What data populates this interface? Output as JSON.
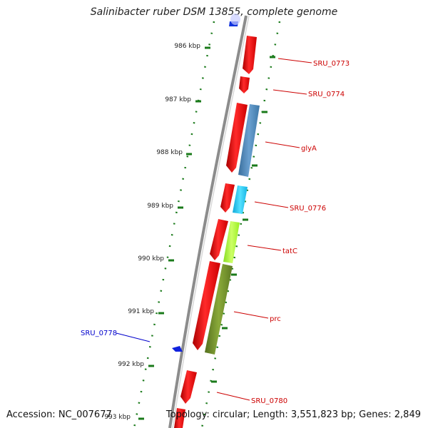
{
  "title": "Salinibacter ruber DSM 13855, complete genome",
  "accession": "Accession: NC_007677",
  "topology": "Topology: circular; Length: 3,551,823 bp; Genes: 2,849",
  "colors": {
    "red_gene": "#ff0000",
    "steel_blue": "#4a84b8",
    "cyan": "#1ec8f0",
    "yellow_green": "#aaff33",
    "olive": "#6b8c2a",
    "blue_label": "#0000cc",
    "red_label": "#cc0000",
    "tick_green": "#1a7a1a",
    "backbone": "#888888"
  },
  "scale_labels": [
    "986 kbp",
    "987 kbp",
    "988 kbp",
    "989 kbp",
    "990 kbp",
    "991 kbp",
    "992 kbp",
    "993 kbp"
  ],
  "gene_labels": [
    {
      "text": "SRU_0773",
      "color": "red"
    },
    {
      "text": "SRU_0774",
      "color": "red"
    },
    {
      "text": "glyA",
      "color": "red"
    },
    {
      "text": "SRU_0776",
      "color": "red"
    },
    {
      "text": "tatC",
      "color": "red"
    },
    {
      "text": "prc",
      "color": "red"
    },
    {
      "text": "SRU_0778",
      "color": "blue"
    },
    {
      "text": "SRU_0780",
      "color": "red"
    }
  ]
}
